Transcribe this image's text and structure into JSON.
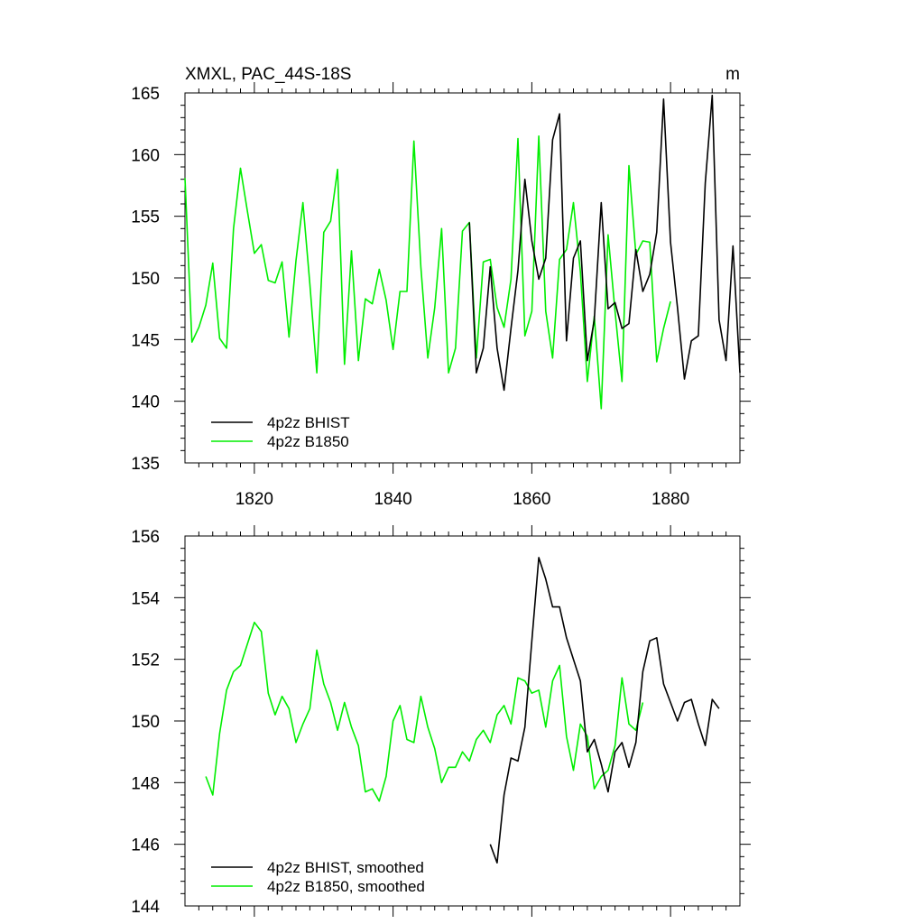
{
  "chart_data": [
    {
      "type": "line",
      "title": "XMXL, PAC_44S-18S",
      "units": "m",
      "xlabel": "",
      "ylabel": "",
      "xlim": [
        1810,
        1890
      ],
      "ylim": [
        135,
        165
      ],
      "x_ticks": [
        1820,
        1840,
        1860,
        1880
      ],
      "y_ticks": [
        135,
        140,
        145,
        150,
        155,
        160,
        165
      ],
      "grid": false,
      "legend_position": "bottom-left",
      "series": [
        {
          "name": "4p2z BHIST",
          "color": "#000000",
          "x_start": 1851,
          "values": [
            154.5,
            142.3,
            144.3,
            150.9,
            144.3,
            140.9,
            145.9,
            150.6,
            158.0,
            153.0,
            149.9,
            151.6,
            161.2,
            163.3,
            144.9,
            151.6,
            153.0,
            143.3,
            146.6,
            156.1,
            147.5,
            148.0,
            145.9,
            146.3,
            152.3,
            148.9,
            150.3,
            153.7,
            164.5,
            152.9,
            147.6,
            141.8,
            144.9,
            145.3,
            157.7,
            164.8,
            146.6,
            143.3,
            152.6,
            142.3
          ]
        },
        {
          "name": "4p2z B1850",
          "color": "#00ee00",
          "x_start": 1810,
          "values": [
            158.1,
            144.8,
            146.0,
            147.8,
            151.2,
            145.1,
            144.3,
            154.0,
            158.9,
            155.4,
            152.0,
            152.7,
            149.8,
            149.6,
            151.3,
            145.2,
            151.4,
            156.1,
            149.5,
            142.3,
            153.7,
            154.6,
            158.8,
            143.0,
            152.2,
            143.3,
            148.3,
            147.9,
            150.7,
            148.2,
            144.2,
            148.9,
            148.9,
            161.1,
            150.9,
            143.5,
            147.6,
            154.0,
            142.3,
            144.3,
            153.8,
            154.5,
            143.5,
            151.3,
            151.5,
            147.6,
            146.0,
            149.9,
            161.3,
            145.3,
            147.3,
            161.5,
            147.3,
            143.5,
            151.5,
            152.3,
            156.1,
            150.5,
            141.6,
            146.9,
            139.4,
            153.5,
            147.3,
            141.6,
            159.1,
            151.9,
            153.0,
            152.9,
            143.2,
            145.9,
            148.1
          ]
        }
      ]
    },
    {
      "type": "line",
      "title": "",
      "xlabel": "",
      "ylabel": "",
      "xlim": [
        1810,
        1890
      ],
      "ylim": [
        144,
        156
      ],
      "y_ticks": [
        144,
        146,
        148,
        150,
        152,
        154,
        156
      ],
      "grid": false,
      "legend_position": "bottom-left",
      "series": [
        {
          "name": "4p2z BHIST, smoothed",
          "color": "#000000",
          "x_start": 1854,
          "values": [
            146.0,
            145.4,
            147.6,
            148.8,
            148.7,
            149.8,
            152.6,
            155.3,
            154.6,
            153.7,
            153.7,
            152.7,
            152.0,
            151.3,
            149.0,
            149.4,
            148.6,
            147.7,
            149.0,
            149.3,
            148.5,
            149.3,
            151.6,
            152.6,
            152.7,
            151.2,
            150.6,
            150.0,
            150.6,
            150.7,
            149.9,
            149.2,
            150.7,
            150.4
          ]
        },
        {
          "name": "4p2z B1850, smoothed",
          "color": "#00ee00",
          "x_start": 1813,
          "values": [
            148.2,
            147.6,
            149.6,
            151.0,
            151.6,
            151.8,
            152.5,
            153.2,
            152.9,
            150.9,
            150.2,
            150.8,
            150.4,
            149.3,
            149.9,
            150.4,
            152.3,
            151.2,
            150.6,
            149.7,
            150.6,
            149.8,
            149.2,
            147.7,
            147.8,
            147.4,
            148.2,
            150.0,
            150.5,
            149.4,
            149.3,
            150.8,
            149.8,
            149.1,
            148.0,
            148.5,
            148.5,
            149.0,
            148.7,
            149.4,
            149.7,
            149.3,
            150.2,
            150.5,
            149.9,
            151.4,
            151.3,
            150.9,
            151.0,
            149.8,
            151.3,
            151.8,
            149.5,
            148.4,
            149.9,
            149.5,
            147.8,
            148.2,
            148.4,
            149.2,
            151.4,
            149.9,
            149.7,
            150.6
          ]
        }
      ]
    }
  ]
}
